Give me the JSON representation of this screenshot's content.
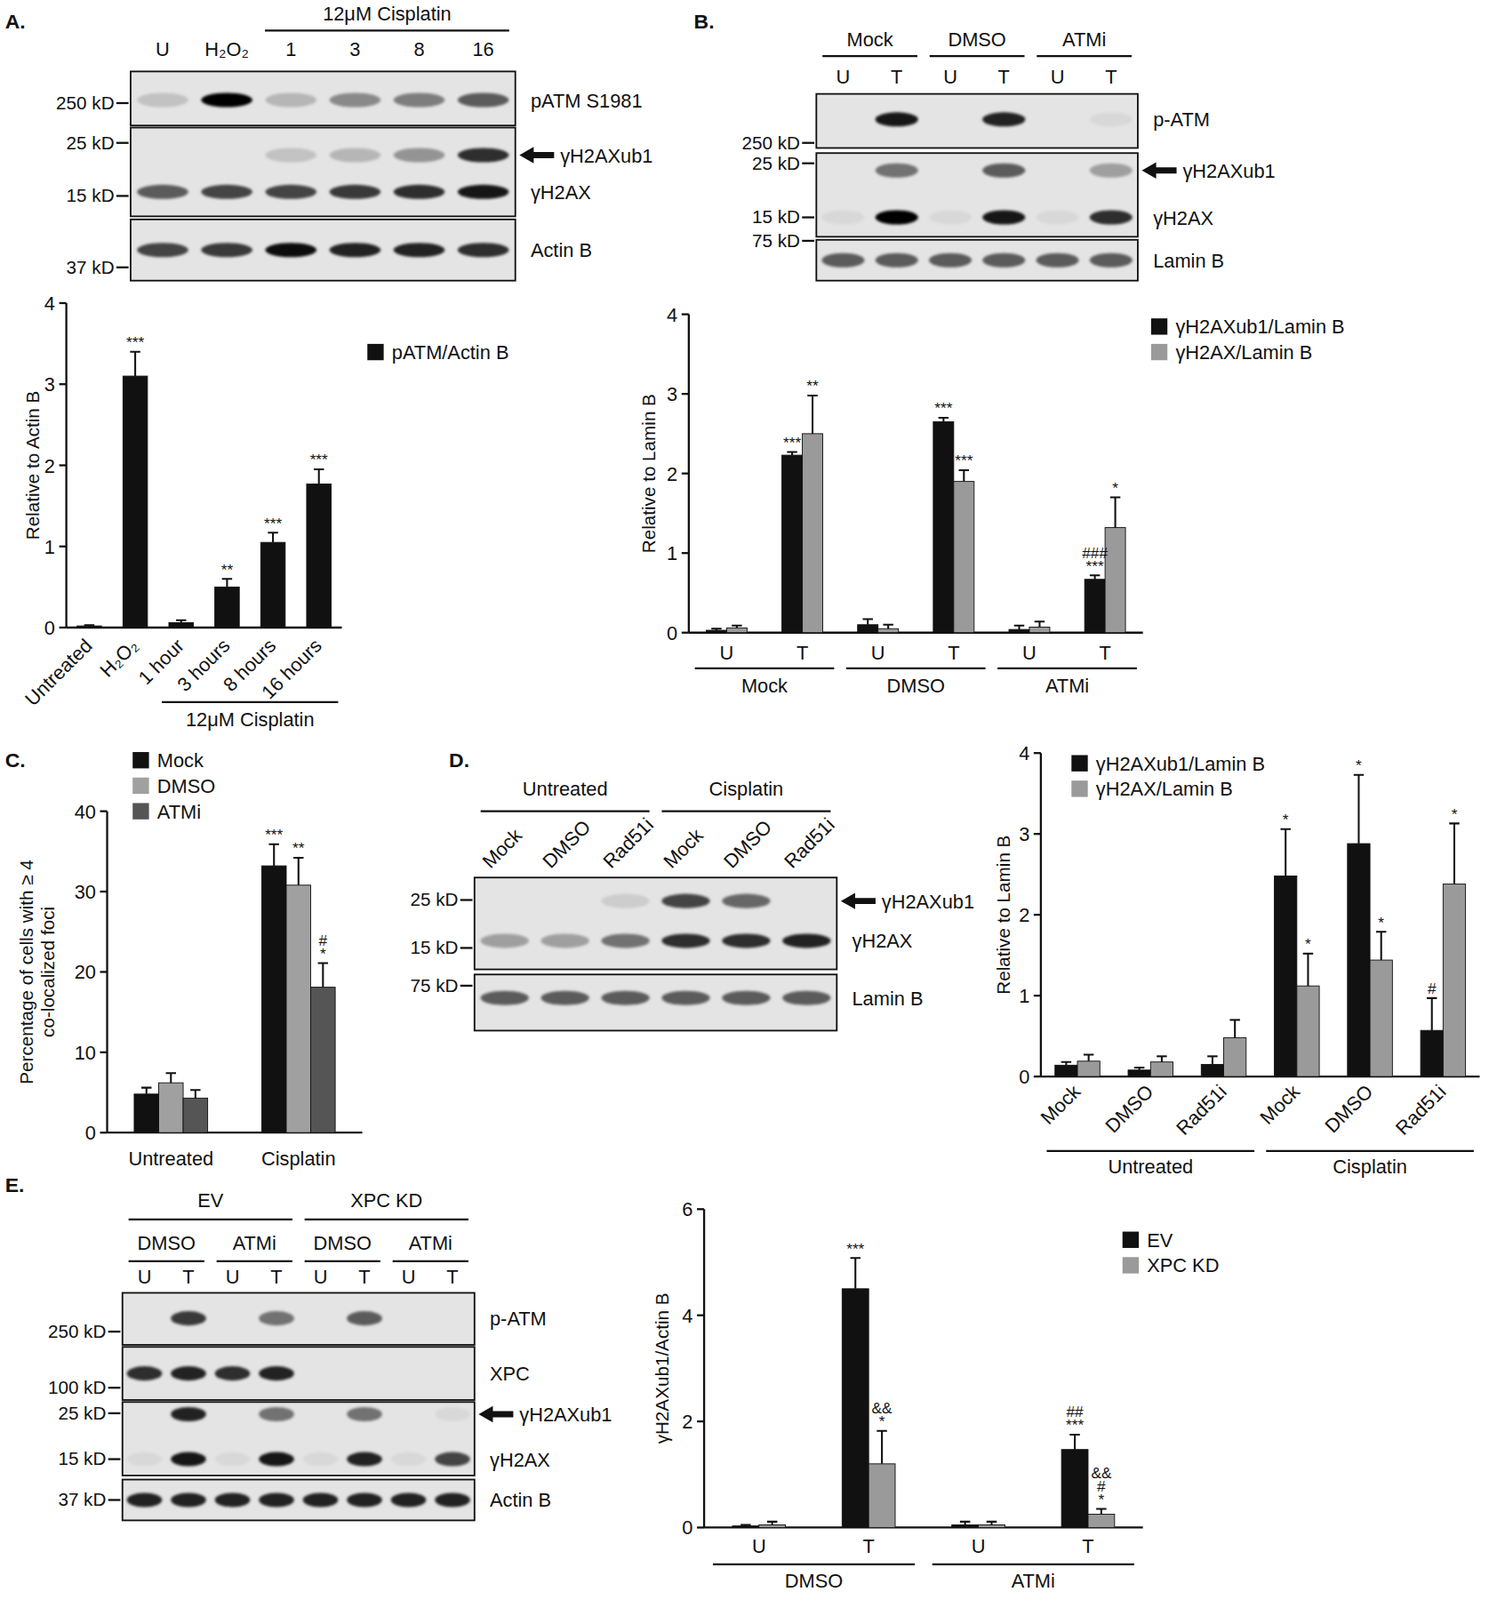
{
  "chart_data": [
    {
      "type": "bar",
      "panel": "A.",
      "ylabel": [
        "Relative to Actin B"
      ],
      "categories": [
        "Untreated",
        "H₂O₂",
        "1 hour",
        "3 hours",
        "8 hours",
        "16 hours"
      ],
      "groups": [
        {
          "label": "12μM Cisplatin",
          "start": 2,
          "span": 4
        }
      ],
      "series": [
        {
          "name": "pATM/Actin B",
          "color": "#111111",
          "values": [
            0.02,
            3.1,
            0.06,
            0.5,
            1.05,
            1.77
          ],
          "errors": [
            0.01,
            0.3,
            0.03,
            0.1,
            0.12,
            0.18
          ],
          "significance": [
            [],
            [
              "***"
            ],
            [],
            [
              "**"
            ],
            [
              "***"
            ],
            [
              "***"
            ]
          ]
        }
      ],
      "ylim": [
        0,
        4
      ],
      "yticks": [
        0,
        1,
        2,
        3,
        4
      ],
      "legend": "top-right"
    },
    {
      "type": "bar",
      "panel": "B.",
      "ylabel": [
        "Relative to Lamin B"
      ],
      "categories": [
        "U",
        "T",
        "U",
        "T",
        "U",
        "T"
      ],
      "groups": [
        {
          "label": "Mock",
          "start": 0,
          "span": 2
        },
        {
          "label": "DMSO",
          "start": 2,
          "span": 2
        },
        {
          "label": "ATMi",
          "start": 4,
          "span": 2
        }
      ],
      "series": [
        {
          "name": "γH2AXub1/Lamin B",
          "color": "#111111",
          "values": [
            0.03,
            2.23,
            0.1,
            2.65,
            0.04,
            0.67
          ],
          "errors": [
            0.02,
            0.04,
            0.07,
            0.05,
            0.05,
            0.05
          ],
          "significance": [
            [],
            [
              "***"
            ],
            [],
            [
              "***"
            ],
            [],
            [
              "###",
              "***"
            ]
          ]
        },
        {
          "name": "γH2AX/Lamin B",
          "color": "#9a9a9a",
          "values": [
            0.06,
            2.5,
            0.05,
            1.9,
            0.07,
            1.32
          ],
          "errors": [
            0.03,
            0.48,
            0.05,
            0.14,
            0.07,
            0.38
          ],
          "significance": [
            [],
            [
              "**"
            ],
            [],
            [
              "***"
            ],
            [],
            [
              "*"
            ]
          ]
        }
      ],
      "ylim": [
        0,
        4
      ],
      "yticks": [
        0,
        1,
        2,
        3,
        4
      ],
      "legend": "top-right"
    },
    {
      "type": "bar",
      "panel": "C.",
      "ylabel": [
        "Percentage of cells with ≥ 4",
        "co-localized foci"
      ],
      "categories": [
        "Untreated",
        "Cisplatin"
      ],
      "groups": [],
      "series": [
        {
          "name": "Mock",
          "color": "#111111",
          "values": [
            4.8,
            33.2
          ],
          "errors": [
            0.8,
            2.7
          ],
          "significance": [
            [],
            [
              "***"
            ]
          ]
        },
        {
          "name": "DMSO",
          "color": "#a0a0a0",
          "values": [
            6.2,
            30.8
          ],
          "errors": [
            1.2,
            3.4
          ],
          "significance": [
            [],
            [
              "**"
            ]
          ]
        },
        {
          "name": "ATMi",
          "color": "#555555",
          "values": [
            4.3,
            18.1
          ],
          "errors": [
            1.0,
            3.0
          ],
          "significance": [
            [],
            [
              "#",
              "*"
            ]
          ]
        }
      ],
      "ylim": [
        0,
        40
      ],
      "yticks": [
        0,
        10,
        20,
        30,
        40
      ],
      "legend": "top-left"
    },
    {
      "type": "bar",
      "panel": "D.",
      "ylabel": [
        "Relative to Lamin B"
      ],
      "categories": [
        "Mock",
        "DMSO",
        "Rad51i",
        "Mock",
        "DMSO",
        "Rad51i"
      ],
      "groups": [
        {
          "label": "Untreated",
          "start": 0,
          "span": 3
        },
        {
          "label": "Cisplatin",
          "start": 3,
          "span": 3
        }
      ],
      "series": [
        {
          "name": "γH2AXub1/Lamin B",
          "color": "#111111",
          "values": [
            0.14,
            0.08,
            0.15,
            2.48,
            2.88,
            0.57
          ],
          "errors": [
            0.04,
            0.03,
            0.1,
            0.58,
            0.85,
            0.4
          ],
          "significance": [
            [],
            [],
            [],
            [
              "*"
            ],
            [
              "*"
            ],
            [
              "#"
            ]
          ]
        },
        {
          "name": "γH2AX/Lamin B",
          "color": "#9a9a9a",
          "values": [
            0.19,
            0.18,
            0.48,
            1.12,
            1.44,
            2.38
          ],
          "errors": [
            0.08,
            0.07,
            0.22,
            0.4,
            0.35,
            0.75
          ],
          "significance": [
            [],
            [],
            [],
            [
              "*"
            ],
            [
              "*"
            ],
            [
              "*"
            ]
          ]
        }
      ],
      "ylim": [
        0,
        4
      ],
      "yticks": [
        0,
        1,
        2,
        3,
        4
      ],
      "legend": "top-left"
    },
    {
      "type": "bar",
      "panel": "E.",
      "ylabel": [
        "γH2AXub1/Actin B"
      ],
      "categories": [
        "U",
        "T",
        "U",
        "T"
      ],
      "groups": [
        {
          "label": "DMSO",
          "start": 0,
          "span": 2
        },
        {
          "label": "ATMi",
          "start": 2,
          "span": 2
        }
      ],
      "series": [
        {
          "name": "EV",
          "color": "#111111",
          "values": [
            0.03,
            4.5,
            0.05,
            1.47
          ],
          "errors": [
            0.02,
            0.58,
            0.06,
            0.28
          ],
          "significance": [
            [],
            [
              "***"
            ],
            [],
            [
              "##",
              "***"
            ]
          ]
        },
        {
          "name": "XPC KD",
          "color": "#9a9a9a",
          "values": [
            0.05,
            1.2,
            0.05,
            0.25
          ],
          "errors": [
            0.06,
            0.62,
            0.06,
            0.1
          ],
          "significance": [
            [],
            [
              "&&",
              "*"
            ],
            [],
            [
              "&&",
              "#",
              "*"
            ]
          ]
        }
      ],
      "ylim": [
        0,
        6
      ],
      "yticks": [
        0,
        2,
        4,
        6
      ],
      "legend": "top-right"
    }
  ],
  "blots": [
    {
      "lanes": [
        "U",
        "H₂O₂",
        "1",
        "3",
        "8",
        "16"
      ],
      "headers": [
        [
          {
            "label": "12μM Cisplatin",
            "start": 2,
            "span": 4
          }
        ]
      ],
      "strips": [
        {
          "rows": [
            {
              "label": "pATM S1981",
              "mw": "250 kD",
              "intensities": [
                0.15,
                1,
                0.2,
                0.4,
                0.45,
                0.6
              ]
            }
          ]
        },
        {
          "rows": [
            {
              "label": "γH2AXub1",
              "arrow": true,
              "mw": "25 kD",
              "intensities": [
                0,
                0,
                0.15,
                0.2,
                0.35,
                0.8
              ]
            },
            {
              "label": "γH2AX",
              "mw": "15 kD",
              "intensities": [
                0.6,
                0.7,
                0.7,
                0.75,
                0.8,
                0.9
              ]
            }
          ]
        },
        {
          "rows": [
            {
              "label": "Actin B",
              "mw": "37 kD",
              "intensities": [
                0.7,
                0.75,
                0.95,
                0.85,
                0.85,
                0.8
              ]
            }
          ]
        }
      ]
    },
    {
      "lanes": [
        "U",
        "T",
        "U",
        "T",
        "U",
        "T"
      ],
      "headers": [
        [
          {
            "label": "Mock",
            "start": 0,
            "span": 2
          },
          {
            "label": "DMSO",
            "start": 2,
            "span": 2
          },
          {
            "label": "ATMi",
            "start": 4,
            "span": 2
          }
        ]
      ],
      "strips": [
        {
          "rows": [
            {
              "label": "p-ATM",
              "mw": "250 kD",
              "intensities": [
                0,
                0.9,
                0,
                0.85,
                0,
                0.05
              ]
            }
          ]
        },
        {
          "rows": [
            {
              "label": "γH2AXub1",
              "arrow": true,
              "mw": "25 kD",
              "intensities": [
                0,
                0.5,
                0,
                0.6,
                0,
                0.3
              ]
            },
            {
              "label": "γH2AX",
              "mw": "15 kD",
              "intensities": [
                0.05,
                1,
                0.05,
                0.9,
                0.05,
                0.8
              ]
            }
          ]
        },
        {
          "rows": [
            {
              "label": "Lamin B",
              "mw": "75 kD",
              "intensities": [
                0.6,
                0.6,
                0.6,
                0.6,
                0.6,
                0.6
              ]
            }
          ]
        }
      ]
    },
    {
      "lanes": [
        "Mock",
        "DMSO",
        "Rad51i",
        "Mock",
        "DMSO",
        "Rad51i"
      ],
      "headers": [
        [
          {
            "label": "Untreated",
            "start": 0,
            "span": 3
          },
          {
            "label": "Cisplatin",
            "start": 3,
            "span": 3
          }
        ]
      ],
      "strips": [
        {
          "rows": [
            {
              "label": "γH2AXub1",
              "arrow": true,
              "mw": "25 kD",
              "intensities": [
                0,
                0,
                0.1,
                0.7,
                0.55,
                0
              ]
            },
            {
              "label": "γH2AX",
              "mw": "15 kD",
              "intensities": [
                0.3,
                0.3,
                0.5,
                0.8,
                0.8,
                0.85
              ]
            }
          ]
        },
        {
          "rows": [
            {
              "label": "Lamin B",
              "mw": "75 kD",
              "intensities": [
                0.6,
                0.6,
                0.6,
                0.6,
                0.6,
                0.6
              ]
            }
          ]
        }
      ]
    },
    {
      "lanes": [
        "U",
        "T",
        "U",
        "T",
        "U",
        "T",
        "U",
        "T"
      ],
      "headers": [
        [
          {
            "label": "DMSO",
            "start": 0,
            "span": 2
          },
          {
            "label": "ATMi",
            "start": 2,
            "span": 2
          },
          {
            "label": "DMSO",
            "start": 4,
            "span": 2
          },
          {
            "label": "ATMi",
            "start": 6,
            "span": 2
          }
        ],
        [
          {
            "label": "EV",
            "start": 0,
            "span": 4
          },
          {
            "label": "XPC KD",
            "start": 4,
            "span": 4
          }
        ]
      ],
      "strips": [
        {
          "rows": [
            {
              "label": "p-ATM",
              "mw": "250 kD",
              "intensities": [
                0,
                0.75,
                0,
                0.5,
                0,
                0.6,
                0,
                0
              ]
            }
          ]
        },
        {
          "rows": [
            {
              "label": "XPC",
              "mw": "100 kD",
              "intensities": [
                0.8,
                0.85,
                0.8,
                0.85,
                0,
                0,
                0,
                0
              ]
            }
          ]
        },
        {
          "rows": [
            {
              "label": "γH2AXub1",
              "arrow": true,
              "mw": "25 kD",
              "intensities": [
                0,
                0.85,
                0,
                0.5,
                0,
                0.5,
                0,
                0.05
              ]
            },
            {
              "label": "γH2AX",
              "mw": "15 kD",
              "intensities": [
                0.05,
                0.9,
                0.05,
                0.9,
                0.05,
                0.85,
                0.05,
                0.7
              ]
            }
          ]
        },
        {
          "rows": [
            {
              "label": "Actin B",
              "mw": "37 kD",
              "intensities": [
                0.85,
                0.85,
                0.85,
                0.85,
                0.85,
                0.85,
                0.85,
                0.85
              ]
            }
          ]
        }
      ]
    }
  ]
}
